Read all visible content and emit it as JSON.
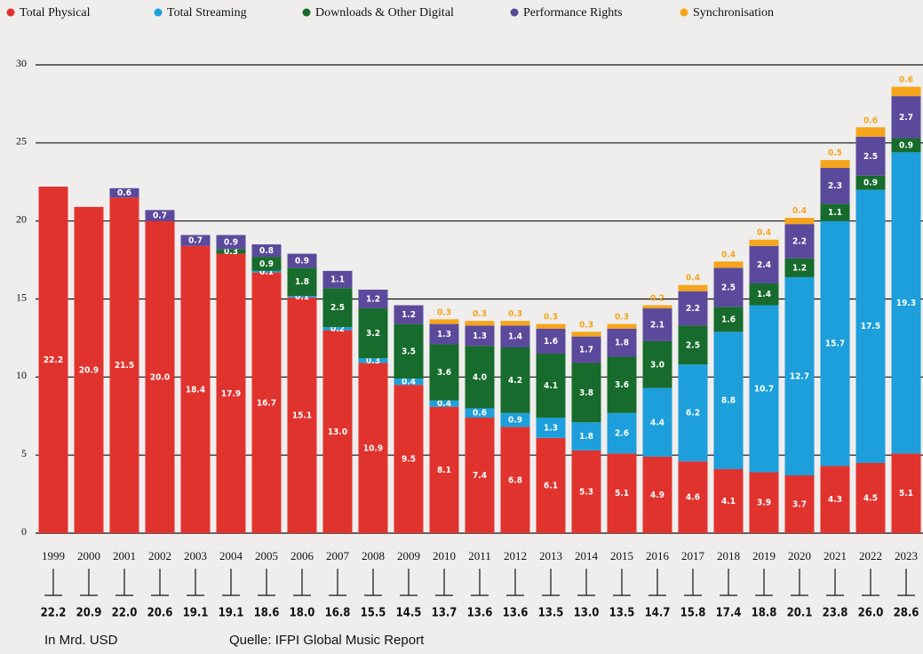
{
  "chart_data": {
    "type": "stacked_bar",
    "categories": [
      "1999",
      "2000",
      "2001",
      "2002",
      "2003",
      "2004",
      "2005",
      "2006",
      "2007",
      "2008",
      "2009",
      "2010",
      "2011",
      "2012",
      "2013",
      "2014",
      "2015",
      "2016",
      "2017",
      "2018",
      "2019",
      "2020",
      "2021",
      "2022",
      "2023"
    ],
    "series": [
      {
        "name": "Total Physical",
        "color": "#e1332e",
        "values": [
          22.2,
          20.9,
          21.5,
          20.0,
          18.4,
          17.9,
          16.7,
          15.1,
          13.0,
          10.9,
          9.5,
          8.1,
          7.4,
          6.8,
          6.1,
          5.3,
          5.1,
          4.9,
          4.6,
          4.1,
          3.9,
          3.7,
          4.3,
          4.5,
          5.1
        ],
        "value_labels": [
          "22.2",
          "20.9",
          "21.5",
          "20.0",
          "18.4",
          "17.9",
          "16.7",
          "15.1",
          "13.0",
          "10.9",
          "9.5",
          "8.1",
          "7.4",
          "6.8",
          "6.1",
          "5.3",
          "5.1",
          "4.9",
          "4.6",
          "4.1",
          "3.9",
          "3.7",
          "4.3",
          "4.5",
          "5.1"
        ]
      },
      {
        "name": "Total Streaming",
        "color": "#1d9fdb",
        "values": [
          null,
          null,
          null,
          null,
          null,
          null,
          0.1,
          0.1,
          0.2,
          0.3,
          0.4,
          0.4,
          0.6,
          0.9,
          1.3,
          1.8,
          2.6,
          4.4,
          6.2,
          8.8,
          10.7,
          12.7,
          15.7,
          17.5,
          19.3
        ],
        "value_labels": [
          null,
          null,
          null,
          null,
          null,
          null,
          "0.1",
          "0.1",
          "0.2",
          "0.3",
          "0.4",
          "0.4",
          "0.6",
          "0.9",
          "1.3",
          "1.8",
          "2.6",
          "4.4",
          "6.2",
          "8.8",
          "10.7",
          "12.7",
          "15.7",
          "17.5",
          "19.3"
        ]
      },
      {
        "name": "Downloads & Other Digital",
        "color": "#176b2c",
        "values": [
          null,
          null,
          null,
          null,
          null,
          0.3,
          0.9,
          1.8,
          2.5,
          3.2,
          3.5,
          3.6,
          4.0,
          4.2,
          4.1,
          3.8,
          3.6,
          3.0,
          2.5,
          1.6,
          1.4,
          1.2,
          1.1,
          0.9,
          0.9
        ],
        "value_labels": [
          null,
          null,
          null,
          null,
          null,
          "0.3",
          "0.9",
          "1.8",
          "2.5",
          "3.2",
          "3.5",
          "3.6",
          "4.0",
          "4.2",
          "4.1",
          "3.8",
          "3.6",
          "3.0",
          "2.5",
          "1.6",
          "1.4",
          "1.2",
          "1.1",
          "0.9",
          "0.9"
        ]
      },
      {
        "name": "Performance Rights",
        "color": "#5b4a9b",
        "values": [
          null,
          null,
          0.6,
          0.7,
          0.7,
          0.9,
          0.8,
          0.9,
          1.1,
          1.2,
          1.2,
          1.3,
          1.3,
          1.4,
          1.6,
          1.7,
          1.8,
          2.1,
          2.2,
          2.5,
          2.4,
          2.2,
          2.3,
          2.5,
          2.7
        ],
        "value_labels": [
          null,
          null,
          "0.6",
          "0.7",
          "0.7",
          "0.9",
          "0.8",
          "0.9",
          "1.1",
          "1.2",
          "1.2",
          "1.3",
          "1.3",
          "1.4",
          "1.6",
          "1.7",
          "1.8",
          "2.1",
          "2.2",
          "2.5",
          "2.4",
          "2.2",
          "2.3",
          "2.5",
          "2.7"
        ]
      },
      {
        "name": "Synchronisation",
        "color": "#f4a51c",
        "values": [
          null,
          null,
          null,
          null,
          null,
          null,
          null,
          null,
          null,
          null,
          null,
          0.3,
          0.3,
          0.3,
          0.3,
          0.3,
          0.3,
          0.2,
          0.4,
          0.4,
          0.4,
          0.4,
          0.5,
          0.6,
          0.6
        ],
        "value_labels": [
          null,
          null,
          null,
          null,
          null,
          null,
          null,
          null,
          null,
          null,
          null,
          "0.3",
          "0.3",
          "0.3",
          "0.3",
          "0.3",
          "0.3",
          "0.2",
          "0.4",
          "0.4",
          "0.4",
          "0.4",
          "0.5",
          "0.6",
          "0.6"
        ]
      }
    ],
    "totals": {
      "values": [
        22.2,
        20.9,
        22.0,
        20.6,
        19.1,
        19.1,
        18.6,
        18.0,
        16.8,
        15.5,
        14.5,
        13.7,
        13.6,
        13.6,
        13.5,
        13.0,
        13.5,
        14.7,
        15.8,
        17.4,
        18.8,
        20.1,
        23.8,
        26.0,
        28.6
      ],
      "value_labels": [
        "22.2",
        "20.9",
        "22.0",
        "20.6",
        "19.1",
        "19.1",
        "18.6",
        "18.0",
        "16.8",
        "15.5",
        "14.5",
        "13.7",
        "13.6",
        "13.6",
        "13.5",
        "13.0",
        "13.5",
        "14.7",
        "15.8",
        "17.4",
        "18.8",
        "20.1",
        "23.8",
        "26.0",
        "28.6"
      ]
    },
    "ylim": [
      0,
      30
    ],
    "yticks": [
      0,
      5,
      10,
      15,
      20,
      25,
      30
    ],
    "grid": true,
    "legend": "top",
    "unit_note": "In Mrd. USD",
    "source": "Quelle: IFPI Global Music Report"
  }
}
